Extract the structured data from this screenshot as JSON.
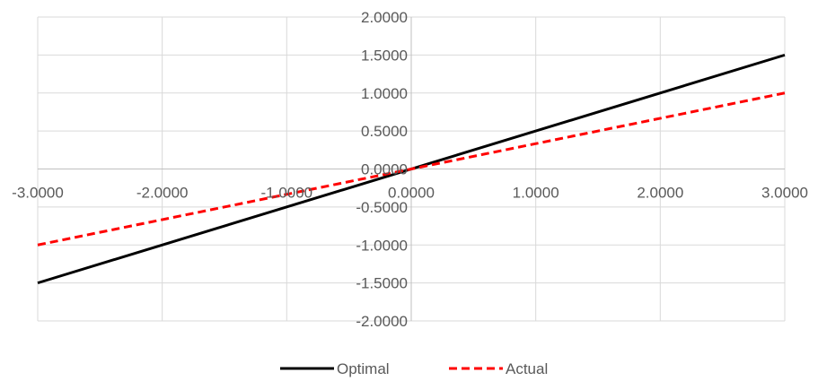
{
  "chart_data": {
    "type": "line",
    "xlim": [
      -3,
      3
    ],
    "ylim": [
      -2,
      2
    ],
    "x_ticks": [
      -3,
      -2,
      -1,
      0,
      1,
      2,
      3
    ],
    "y_ticks": [
      -2,
      -1.5,
      -1,
      -0.5,
      0,
      0.5,
      1,
      1.5,
      2
    ],
    "x_tick_labels": [
      "-3.0000",
      "-2.0000",
      "-1.0000",
      "0.0000",
      "1.0000",
      "2.0000",
      "3.0000"
    ],
    "y_tick_labels": [
      "-2.0000",
      "-1.5000",
      "-1.0000",
      "-0.5000",
      "0.0000",
      "0.5000",
      "1.0000",
      "1.5000",
      "2.0000"
    ],
    "grid": true,
    "legend_position": "bottom",
    "series": [
      {
        "name": "Optimal",
        "color": "#000000",
        "dash": "solid",
        "x": [
          -3,
          3
        ],
        "y": [
          -1.5,
          1.5
        ]
      },
      {
        "name": "Actual",
        "color": "#ff0000",
        "dash": "dashed",
        "x": [
          -3,
          3
        ],
        "y": [
          -1,
          1
        ]
      }
    ]
  }
}
